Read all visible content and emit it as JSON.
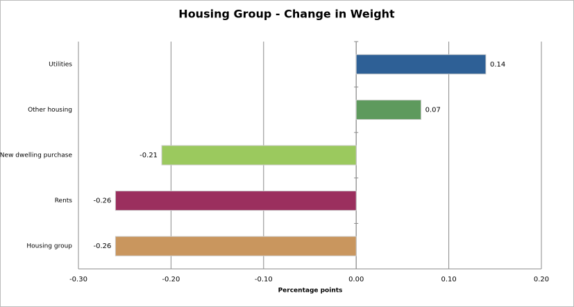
{
  "chart_data": {
    "type": "hbar",
    "title": "Housing Group - Change in Weight",
    "x_label": "Percentage points",
    "categories": [
      "Utilities",
      "Other housing",
      "New dwelling purchase",
      "Rents",
      "Housing group"
    ],
    "values": [
      0.14,
      0.07,
      -0.21,
      -0.26,
      -0.26
    ],
    "colors": [
      "#2e6096",
      "#5e9a5d",
      "#9bc95e",
      "#9b2f5e",
      "#c9965e"
    ],
    "xlim": [
      -0.3,
      0.2
    ],
    "xticks": [
      {
        "value": -0.3,
        "label": "-0.30"
      },
      {
        "value": -0.2,
        "label": "-0.20"
      },
      {
        "value": -0.1,
        "label": "-0.10"
      },
      {
        "value": 0,
        "label": "0.00"
      },
      {
        "value": 0.1,
        "label": "0.10"
      },
      {
        "value": 0.2,
        "label": "0.20"
      }
    ],
    "grid": true
  }
}
